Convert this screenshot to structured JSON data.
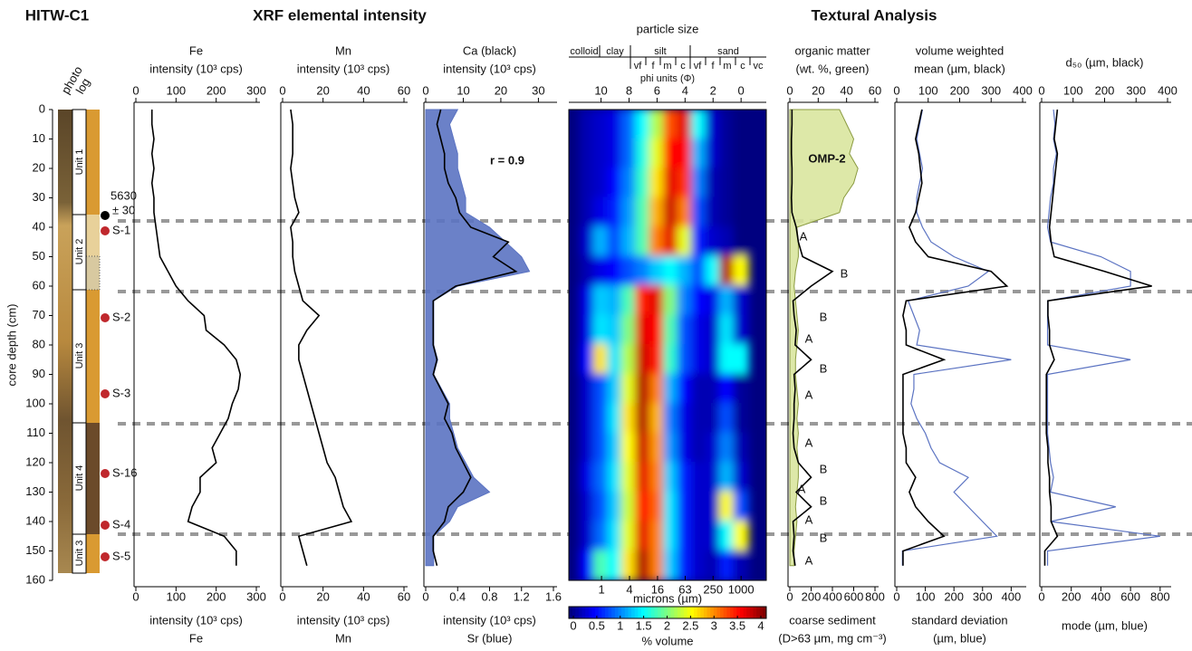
{
  "figure": {
    "core_id": "HITW-C1",
    "xrf_title": "XRF elemental intensity",
    "texture_title": "Textural Analysis"
  },
  "chart_data": [
    {
      "type": "core-log",
      "column_labels": [
        "photo",
        "log"
      ],
      "ylabel": "core depth (cm)",
      "ylim": [
        0,
        160
      ],
      "yticks": [
        0,
        10,
        20,
        30,
        40,
        50,
        60,
        70,
        80,
        90,
        100,
        110,
        120,
        130,
        140,
        150,
        160
      ],
      "units": [
        "Unit 1",
        "Unit 2",
        "Unit 3",
        "Unit 4",
        "Unit 3"
      ],
      "samples": [
        "S-1",
        "S-2",
        "S-3",
        "S-16",
        "S-4",
        "S-5"
      ],
      "date_label": [
        "5630",
        "± 30"
      ]
    },
    {
      "type": "profile",
      "top": {
        "lines": [
          "Fe",
          "intensity (10³ cps)"
        ],
        "xlim": [
          0,
          300
        ],
        "xticks": [
          0,
          100,
          200,
          300
        ]
      },
      "bottom": {
        "lines": [
          "intensity (10³ cps)",
          "Fe"
        ],
        "xlim": [
          0,
          300
        ],
        "xticks": [
          0,
          100,
          200,
          300
        ]
      },
      "ylim": [
        0,
        160
      ],
      "y": [
        0,
        5,
        10,
        15,
        20,
        25,
        30,
        35,
        40,
        45,
        50,
        55,
        60,
        65,
        70,
        75,
        80,
        85,
        90,
        95,
        100,
        105,
        110,
        115,
        120,
        125,
        130,
        135,
        140,
        145,
        150,
        155
      ],
      "series": [
        {
          "color": "#000000",
          "axis": "top",
          "values": [
            40,
            40,
            45,
            40,
            45,
            40,
            45,
            45,
            50,
            55,
            60,
            80,
            100,
            130,
            170,
            175,
            220,
            250,
            260,
            255,
            240,
            230,
            210,
            190,
            200,
            160,
            160,
            140,
            130,
            220,
            250,
            250
          ]
        }
      ]
    },
    {
      "type": "profile",
      "top": {
        "lines": [
          "Mn",
          "intensity (10³ cps)"
        ],
        "xlim": [
          0,
          60
        ],
        "xticks": [
          0,
          20,
          40,
          60
        ]
      },
      "bottom": {
        "lines": [
          "intensity (10³ cps)",
          "Mn"
        ],
        "xlim": [
          0,
          60
        ],
        "xticks": [
          0,
          20,
          40,
          60
        ]
      },
      "ylim": [
        0,
        160
      ],
      "y": [
        0,
        5,
        10,
        15,
        20,
        25,
        30,
        35,
        40,
        45,
        50,
        55,
        60,
        65,
        70,
        75,
        80,
        85,
        90,
        95,
        100,
        105,
        110,
        115,
        120,
        125,
        130,
        135,
        140,
        145,
        150,
        155
      ],
      "series": [
        {
          "color": "#000000",
          "axis": "top",
          "values": [
            4,
            5,
            5,
            5,
            4,
            5,
            6,
            8,
            4,
            5,
            5,
            6,
            8,
            10,
            18,
            12,
            8,
            8,
            10,
            12,
            14,
            16,
            18,
            20,
            22,
            26,
            28,
            30,
            34,
            8,
            10,
            12
          ]
        }
      ]
    },
    {
      "type": "profile",
      "top": {
        "lines": [
          "Ca (black)",
          "intensity (10³ cps)"
        ],
        "xlim": [
          0,
          34
        ],
        "xticks": [
          0,
          10,
          20,
          30
        ]
      },
      "bottom": {
        "lines": [
          "intensity (10³ cps)",
          "Sr (blue)"
        ],
        "xlim": [
          0,
          1.6
        ],
        "xticks": [
          0,
          0.4,
          0.8,
          1.2,
          1.6
        ]
      },
      "ylim": [
        0,
        160
      ],
      "annotations": [
        "r = 0.9"
      ],
      "y": [
        0,
        5,
        10,
        15,
        20,
        25,
        30,
        35,
        40,
        45,
        50,
        55,
        60,
        65,
        70,
        75,
        80,
        85,
        90,
        95,
        100,
        105,
        110,
        115,
        120,
        125,
        130,
        135,
        140,
        145,
        150,
        155
      ],
      "series": [
        {
          "color": "#5b73c2",
          "axis": "bottom",
          "fill": true,
          "values": [
            0.4,
            0.3,
            0.35,
            0.4,
            0.4,
            0.45,
            0.5,
            0.5,
            0.8,
            1.0,
            1.2,
            1.3,
            0.4,
            0.1,
            0.1,
            0.1,
            0.1,
            0.15,
            0.1,
            0.2,
            0.3,
            0.3,
            0.35,
            0.4,
            0.5,
            0.6,
            0.8,
            0.4,
            0.3,
            0.1,
            0.1,
            0.1
          ]
        },
        {
          "color": "#000000",
          "axis": "top",
          "values": [
            4,
            3,
            4,
            5,
            5,
            6,
            8,
            9,
            12,
            22,
            18,
            24,
            8,
            2,
            2,
            2,
            2,
            3,
            2,
            4,
            6,
            5,
            7,
            8,
            10,
            12,
            10,
            6,
            5,
            2,
            2,
            3
          ]
        }
      ]
    },
    {
      "type": "heatmap",
      "title": "particle size",
      "grade_classes": [
        "colloid",
        "clay",
        "silt",
        "sand"
      ],
      "grade_subclasses": [
        "vf",
        "f",
        "m",
        "c",
        "vf",
        "f",
        "m",
        "c",
        "vc"
      ],
      "xlabel": "phi units (Φ)",
      "xlim": [
        12.3,
        -1.8
      ],
      "xticks": [
        10,
        8,
        6,
        4,
        2,
        0
      ],
      "x2label": "microns (µm)",
      "x2ticks": [
        1,
        4,
        16,
        63,
        250,
        1000
      ],
      "ylim": [
        0,
        160
      ],
      "x": [
        11,
        10,
        9,
        8,
        7,
        6,
        5,
        4,
        3,
        2,
        1,
        0
      ],
      "y": [
        5,
        15,
        25,
        35,
        45,
        55,
        65,
        75,
        85,
        95,
        105,
        115,
        125,
        135,
        145,
        155
      ],
      "z": [
        [
          0.2,
          0.3,
          0.4,
          0.9,
          1.5,
          2.2,
          3.2,
          3.6,
          1.5,
          0.3,
          0.1,
          0
        ],
        [
          0.2,
          0.3,
          0.4,
          0.9,
          1.6,
          2.4,
          3.5,
          3.5,
          1.2,
          0.3,
          0.1,
          0
        ],
        [
          0.2,
          0.3,
          0.5,
          1,
          1.7,
          2.6,
          3.6,
          3.3,
          1,
          0.2,
          0.1,
          0
        ],
        [
          0.2,
          0.4,
          0.6,
          1.1,
          1.8,
          2.8,
          3.7,
          3,
          0.8,
          0.2,
          0.1,
          0
        ],
        [
          0.3,
          1.2,
          0.8,
          1.2,
          1.8,
          3,
          3.6,
          2.4,
          0.6,
          0.3,
          0.2,
          0
        ],
        [
          0.2,
          0.4,
          0.5,
          0.8,
          1,
          1.3,
          1.5,
          1.2,
          0.8,
          1.5,
          3.8,
          2.5
        ],
        [
          0.4,
          1.3,
          1.2,
          1.8,
          3.4,
          3.6,
          2,
          1,
          0.5,
          0.4,
          1.2,
          0.3
        ],
        [
          0.4,
          1.4,
          1.3,
          2,
          3.6,
          3.5,
          1.8,
          0.8,
          0.4,
          0.3,
          1.4,
          0.3
        ],
        [
          0.5,
          2.6,
          1.4,
          2.2,
          3.7,
          3.4,
          1.7,
          0.8,
          0.4,
          0.3,
          1.5,
          1.5
        ],
        [
          0.3,
          0.8,
          1.3,
          2.4,
          3.8,
          3,
          1.2,
          0.5,
          0.2,
          0.2,
          0.5,
          0.1
        ],
        [
          0.3,
          0.8,
          1.4,
          2.6,
          3.8,
          2.8,
          1,
          0.4,
          0.2,
          0.2,
          0.8,
          0.1
        ],
        [
          0.3,
          0.8,
          1.3,
          2.5,
          3.7,
          2.9,
          1.1,
          0.4,
          0.2,
          0.3,
          1,
          0.2
        ],
        [
          0.4,
          0.9,
          1.4,
          2.4,
          3.6,
          3,
          1.3,
          0.6,
          0.3,
          0.3,
          1.2,
          0.3
        ],
        [
          0.3,
          0.8,
          1.3,
          2.3,
          3.5,
          3.1,
          1.4,
          0.6,
          0.3,
          0.3,
          2.5,
          0.8
        ],
        [
          0.3,
          0.9,
          1.4,
          2.4,
          3.6,
          3,
          1.4,
          0.6,
          0.3,
          0.3,
          1.5,
          2.5
        ],
        [
          0.5,
          1.8,
          1.5,
          2.6,
          3.8,
          3,
          1.3,
          0.6,
          0.3,
          0.2,
          0.6,
          0.2
        ]
      ],
      "colormap": "jet",
      "colorbar": {
        "label": "% volume",
        "lim": [
          0,
          4
        ],
        "ticks": [
          0,
          0.5,
          1,
          1.5,
          2,
          2.5,
          3,
          3.5,
          4
        ]
      }
    },
    {
      "type": "profile",
      "top": {
        "lines": [
          "organic matter",
          "(wt. %, green)"
        ],
        "xlim": [
          0,
          60
        ],
        "xticks": [
          0,
          20,
          40,
          60
        ]
      },
      "bottom": {
        "lines": [
          "coarse sediment",
          "(D>63 µm, mg cm⁻³)"
        ],
        "xlim": [
          0,
          800
        ],
        "xticks": [
          0,
          200,
          400,
          600,
          800
        ]
      },
      "ylim": [
        0,
        160
      ],
      "annotations": [
        "OMP-2",
        "A",
        "B",
        "B",
        "A",
        "B",
        "A",
        "A",
        "B",
        "A",
        "B",
        "A",
        "B",
        "A"
      ],
      "y": [
        0,
        5,
        10,
        15,
        20,
        25,
        30,
        35,
        40,
        45,
        50,
        55,
        60,
        65,
        70,
        75,
        80,
        85,
        90,
        95,
        100,
        105,
        110,
        115,
        120,
        125,
        130,
        135,
        140,
        145,
        150,
        155
      ],
      "series": [
        {
          "color": "#d9e59f",
          "axis": "top",
          "fill": true,
          "values": [
            35,
            40,
            45,
            42,
            48,
            45,
            38,
            35,
            5,
            6,
            6,
            4,
            3,
            4,
            5,
            6,
            5,
            4,
            4,
            5,
            6,
            5,
            6,
            5,
            6,
            6,
            5,
            4,
            5,
            4,
            3,
            3
          ]
        },
        {
          "color": "#000000",
          "axis": "bottom",
          "values": [
            20,
            20,
            15,
            15,
            20,
            20,
            15,
            20,
            60,
            80,
            120,
            400,
            200,
            30,
            40,
            60,
            50,
            200,
            40,
            50,
            40,
            40,
            30,
            40,
            80,
            200,
            60,
            200,
            30,
            40,
            30,
            50
          ]
        }
      ]
    },
    {
      "type": "profile",
      "top": {
        "lines": [
          "volume weighted",
          "mean (µm, black)"
        ],
        "xlim": [
          0,
          400
        ],
        "xticks": [
          0,
          100,
          200,
          300,
          400
        ]
      },
      "bottom": {
        "lines": [
          "standard deviation",
          "(µm, blue)"
        ],
        "xlim": [
          0,
          440
        ],
        "xticks": [
          0,
          100,
          200,
          300,
          400
        ]
      },
      "ylim": [
        0,
        160
      ],
      "y": [
        0,
        5,
        10,
        15,
        20,
        25,
        30,
        35,
        40,
        45,
        50,
        55,
        60,
        65,
        70,
        75,
        80,
        85,
        90,
        95,
        100,
        105,
        110,
        115,
        120,
        125,
        130,
        135,
        140,
        145,
        150,
        155
      ],
      "series": [
        {
          "color": "#5b73c2",
          "axis": "bottom",
          "values": [
            90,
            80,
            70,
            80,
            90,
            80,
            70,
            70,
            90,
            120,
            200,
            320,
            250,
            40,
            60,
            80,
            70,
            400,
            60,
            60,
            50,
            70,
            100,
            120,
            150,
            250,
            200,
            250,
            300,
            350,
            20,
            20
          ]
        },
        {
          "color": "#000000",
          "axis": "top",
          "values": [
            80,
            70,
            60,
            70,
            75,
            80,
            70,
            60,
            40,
            60,
            100,
            300,
            350,
            30,
            20,
            30,
            30,
            150,
            20,
            20,
            20,
            20,
            20,
            30,
            30,
            60,
            40,
            60,
            100,
            150,
            20,
            20
          ]
        }
      ]
    },
    {
      "type": "profile",
      "top": {
        "lines": [
          "d₅₀ (µm, black)"
        ],
        "xlim": [
          0,
          400
        ],
        "xticks": [
          0,
          100,
          200,
          300,
          400
        ]
      },
      "bottom": {
        "lines": [
          "mode (µm, blue)"
        ],
        "xlim": [
          0,
          850
        ],
        "xticks": [
          0,
          200,
          400,
          600,
          800
        ]
      },
      "ylim": [
        0,
        160
      ],
      "y": [
        0,
        5,
        10,
        15,
        20,
        25,
        30,
        35,
        40,
        45,
        50,
        55,
        60,
        65,
        70,
        75,
        80,
        85,
        90,
        95,
        100,
        105,
        110,
        115,
        120,
        125,
        130,
        135,
        140,
        145,
        150,
        155
      ],
      "series": [
        {
          "color": "#5b73c2",
          "axis": "bottom",
          "values": [
            80,
            90,
            80,
            100,
            80,
            80,
            60,
            50,
            40,
            60,
            400,
            600,
            600,
            40,
            40,
            40,
            40,
            600,
            40,
            40,
            40,
            40,
            40,
            50,
            60,
            80,
            60,
            500,
            60,
            800,
            40,
            40
          ]
        },
        {
          "color": "#000000",
          "axis": "top",
          "values": [
            50,
            45,
            40,
            50,
            45,
            40,
            35,
            30,
            25,
            30,
            40,
            200,
            350,
            20,
            20,
            25,
            25,
            40,
            15,
            15,
            15,
            15,
            15,
            20,
            20,
            25,
            25,
            30,
            30,
            50,
            10,
            10
          ]
        }
      ]
    }
  ]
}
